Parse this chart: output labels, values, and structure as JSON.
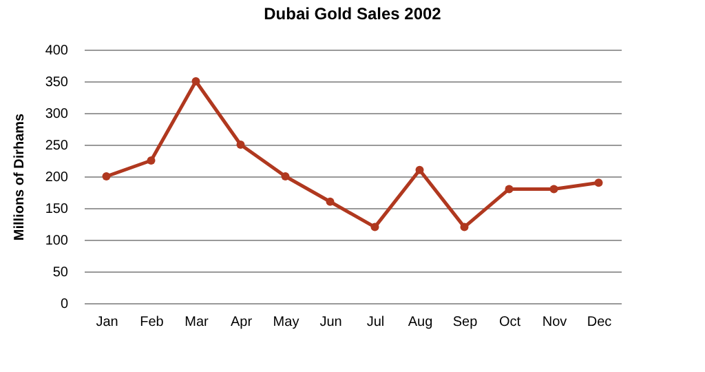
{
  "chart_data": {
    "type": "line",
    "title": "Dubai Gold Sales 2002",
    "ylabel": "Millions of Dirhams",
    "categories": [
      "Jan",
      "Feb",
      "Mar",
      "Apr",
      "May",
      "Jun",
      "Jul",
      "Aug",
      "Sep",
      "Oct",
      "Nov",
      "Dec"
    ],
    "series": [
      {
        "color": "#b0381f",
        "values": [
          200,
          225,
          350,
          250,
          200,
          160,
          120,
          210,
          120,
          180,
          180,
          190
        ]
      }
    ],
    "ylim": [
      0,
      400
    ],
    "yticks": [
      0,
      50,
      100,
      150,
      200,
      250,
      300,
      350,
      400
    ],
    "grid": "y",
    "marker": "circle",
    "line_style": "solid"
  }
}
